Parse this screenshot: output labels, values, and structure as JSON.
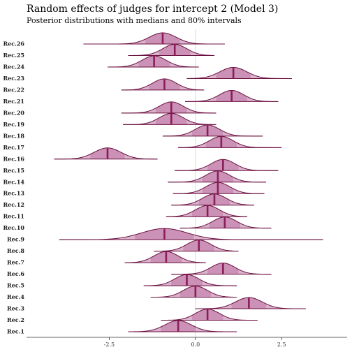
{
  "chart_data": {
    "type": "ridgeline",
    "title": "Random effects of judges for intercept 2 (Model 3)",
    "subtitle": "Posterior distributions with medians and 80% intervals",
    "xlabel": "",
    "ylabel": "",
    "xlim": [
      -4.9,
      4.4
    ],
    "x_ticks": [
      -2.5,
      0.0,
      2.5
    ],
    "x_tick_labels": [
      "-2.5",
      "0.0",
      "2.5"
    ],
    "reference_line": 0,
    "grid": false,
    "legend": "none",
    "colors": {
      "fill": "#d4a6c4",
      "outline": "#6b0f3e",
      "median": "#8b1e5a",
      "interval_fill": "#c98db4",
      "zero_line": "#d9d9d9"
    },
    "categories": [
      "Rec.1",
      "Rec.2",
      "Rec.3",
      "Rec.4",
      "Rec.5",
      "Rec.6",
      "Rec.7",
      "Rec.8",
      "Rec.9",
      "Rec.10",
      "Rec.11",
      "Rec.12",
      "Rec.13",
      "Rec.14",
      "Rec.15",
      "Rec.16",
      "Rec.17",
      "Rec.18",
      "Rec.19",
      "Rec.20",
      "Rec.21",
      "Rec.22",
      "Rec.23",
      "Rec.24",
      "Rec.25",
      "Rec.26"
    ],
    "medians": [
      -0.5,
      0.35,
      1.55,
      0.0,
      -0.25,
      0.8,
      -0.85,
      0.1,
      -0.9,
      0.85,
      0.35,
      0.55,
      0.65,
      0.65,
      0.8,
      -2.55,
      0.75,
      0.35,
      -0.7,
      -0.7,
      1.05,
      -0.9,
      1.1,
      -1.2,
      -0.6,
      -0.95
    ],
    "interval_low": [
      -1.0,
      -0.1,
      1.05,
      -0.45,
      -0.7,
      0.35,
      -1.3,
      -0.35,
      -1.75,
      0.4,
      -0.1,
      0.1,
      0.2,
      0.2,
      0.35,
      -3.05,
      0.3,
      -0.1,
      -1.15,
      -1.15,
      0.6,
      -1.35,
      0.6,
      -1.65,
      -1.05,
      -1.45
    ],
    "interval_high": [
      0.0,
      0.8,
      2.05,
      0.45,
      0.2,
      1.25,
      -0.4,
      0.55,
      -0.05,
      1.3,
      0.8,
      1.0,
      1.1,
      1.1,
      1.25,
      -2.05,
      1.2,
      0.8,
      -0.25,
      -0.25,
      1.5,
      -0.45,
      1.6,
      -0.75,
      -0.15,
      -0.45
    ],
    "range_low": [
      -1.95,
      -1.0,
      0.0,
      -1.3,
      -1.5,
      -0.7,
      -2.05,
      -1.2,
      -3.95,
      -0.45,
      -0.85,
      -0.7,
      -0.65,
      -0.8,
      -0.6,
      -4.1,
      -0.5,
      -0.95,
      -2.1,
      -2.15,
      -0.3,
      -2.15,
      -0.25,
      -2.55,
      -1.95,
      -3.25
    ],
    "range_high": [
      1.2,
      1.8,
      3.2,
      1.2,
      1.2,
      2.2,
      0.3,
      1.25,
      3.7,
      2.2,
      1.5,
      1.7,
      2.0,
      2.05,
      2.4,
      -1.1,
      2.5,
      1.95,
      0.6,
      0.6,
      2.4,
      0.25,
      2.8,
      0.1,
      0.55,
      0.85
    ]
  }
}
